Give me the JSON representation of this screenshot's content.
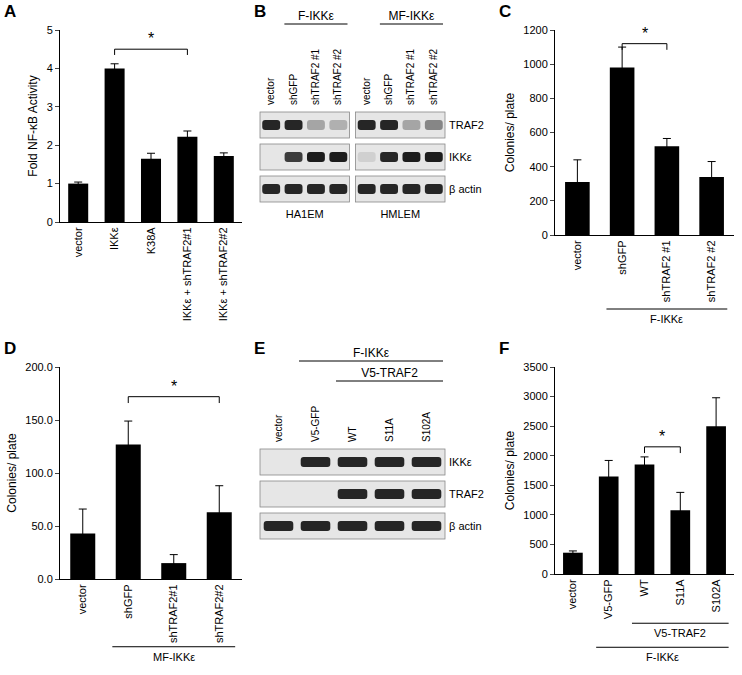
{
  "chart_data": [
    {
      "type": "bar",
      "title": "A",
      "categories": [
        "vector",
        "IKKε",
        "K38A",
        "IKKε + shTRAF2#1",
        "IKKε + shTRAF2#2"
      ],
      "values": [
        1.0,
        4.0,
        1.65,
        2.22,
        1.72
      ],
      "errors": [
        0.04,
        0.12,
        0.14,
        0.15,
        0.08
      ],
      "ylabel": "Fold NF-κB Activity",
      "color": "#000000",
      "ylim": [
        0,
        5
      ],
      "yticks": [
        0,
        1,
        2,
        3,
        4,
        5
      ],
      "grid": false,
      "annotations": [
        {
          "text": "*",
          "from": 1,
          "to": 3,
          "y": 4.5
        }
      ]
    },
    {
      "type": "bar",
      "title": "C",
      "categories": [
        "vector",
        "shGFP",
        "shTRAF2 #1",
        "shTRAF2 #2"
      ],
      "values": [
        310,
        980,
        520,
        340
      ],
      "errors": [
        130,
        120,
        45,
        90
      ],
      "ylabel": "Colonies/ plate",
      "color": "#000000",
      "ylim": [
        0,
        1200
      ],
      "yticks": [
        0,
        200,
        400,
        600,
        800,
        1000,
        1200
      ],
      "grid": false,
      "annotations": [
        {
          "text": "*",
          "from": 1,
          "to": 2,
          "y": 1120
        }
      ],
      "groups": [
        {
          "text": "F-IKKε",
          "from": 1,
          "to": 3
        }
      ]
    },
    {
      "type": "bar",
      "title": "D",
      "categories": [
        "vector",
        "shGFP",
        "shTRAF2#1",
        "shTRAF2#2"
      ],
      "values": [
        43,
        127,
        15,
        63
      ],
      "errors": [
        23,
        22,
        8,
        25
      ],
      "ylabel": "Colonies/ plate",
      "color": "#000000",
      "ylim": [
        0,
        200
      ],
      "yticks": [
        {
          "value": 0,
          "label": "0.0"
        },
        {
          "value": 50,
          "label": "50.0"
        },
        {
          "value": 100,
          "label": "100.0"
        },
        {
          "value": 150,
          "label": "150.0"
        },
        {
          "value": 200,
          "label": "200.0"
        }
      ],
      "grid": false,
      "annotations": [
        {
          "text": "*",
          "from": 1,
          "to": 3,
          "y": 172
        }
      ],
      "groups": [
        {
          "text": "MF-IKKε",
          "from": 1,
          "to": 3
        }
      ]
    },
    {
      "type": "bar",
      "title": "F",
      "categories": [
        "vector",
        "V5-GFP",
        "WT",
        "S11A",
        "S102A"
      ],
      "values": [
        360,
        1650,
        1850,
        1080,
        2500
      ],
      "errors": [
        30,
        270,
        130,
        300,
        480
      ],
      "ylabel": "Colonies/ plate",
      "color": "#000000",
      "ylim": [
        0,
        3500
      ],
      "yticks": [
        0,
        500,
        1000,
        1500,
        2000,
        2500,
        3000,
        3500
      ],
      "grid": false,
      "annotations": [
        {
          "text": "*",
          "from": 2,
          "to": 3,
          "y": 2150
        }
      ],
      "groups": [
        {
          "text": "V5-TRAF2",
          "from": 2,
          "to": 4
        },
        {
          "text": "F-IKKε",
          "from": 1,
          "to": 4
        }
      ]
    }
  ],
  "blots": [
    {
      "title": "B",
      "lanes": [
        "vector",
        "shGFP",
        "shTRAF2 #1",
        "shTRAF2 #2",
        "vector",
        "shGFP",
        "shTRAF2 #1",
        "shTRAF2 #2"
      ],
      "top_labels": [
        [
          {
            "text": "F-IKKε",
            "from": 1,
            "to": 3
          },
          {
            "text": "MF-IKKε",
            "from": 5,
            "to": 7
          }
        ]
      ],
      "strips": [
        {
          "from": 0,
          "to": 3,
          "label": "HA1EM"
        },
        {
          "from": 4,
          "to": 7,
          "label": "HMLEM"
        }
      ],
      "rows": [
        {
          "label": "TRAF2",
          "bands": [
            0.9,
            0.9,
            0.3,
            0.25,
            0.9,
            0.9,
            0.3,
            0.45
          ]
        },
        {
          "label": "IKKε",
          "bands": [
            0,
            0.8,
            0.95,
            0.95,
            0.1,
            0.9,
            0.95,
            0.95
          ]
        },
        {
          "label": "β actin",
          "bands": [
            0.9,
            0.9,
            0.9,
            0.9,
            0.9,
            0.9,
            0.9,
            0.9
          ]
        }
      ]
    },
    {
      "title": "E",
      "lanes": [
        "vector",
        "V5-GFP",
        "WT",
        "S11A",
        "S102A"
      ],
      "top_labels": [
        [
          {
            "text": "F-IKKε",
            "from": 1,
            "to": 4
          }
        ],
        [
          {
            "text": "V5-TRAF2",
            "from": 2,
            "to": 4
          }
        ]
      ],
      "strips": [
        {
          "from": 0,
          "to": 4
        }
      ],
      "rows": [
        {
          "label": "IKKε",
          "bands": [
            0,
            0.9,
            0.9,
            0.9,
            0.9
          ]
        },
        {
          "label": "TRAF2",
          "bands": [
            0,
            0,
            0.9,
            0.9,
            0.9
          ]
        },
        {
          "label": "β actin",
          "bands": [
            0.9,
            0.9,
            0.9,
            0.9,
            0.9
          ]
        }
      ]
    }
  ]
}
